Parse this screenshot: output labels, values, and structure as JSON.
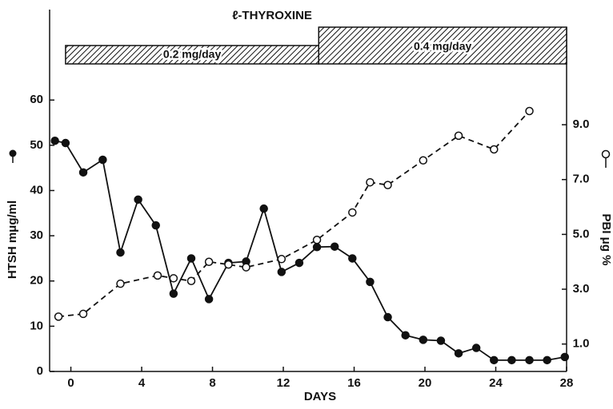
{
  "chart_data": {
    "type": "line",
    "title": "ℓ-THYROXINE",
    "xlabel": "DAYS",
    "ylabel": "HTSH mμg/ml",
    "y2label": "PBI μg %",
    "dose": [
      {
        "label": "0.2 mg/day",
        "start": -0.3,
        "end": 14
      },
      {
        "label": "0.4 mg/day",
        "start": 14,
        "end": 28
      }
    ],
    "xlim": [
      -1.2,
      28
    ],
    "xticks": [
      0,
      4,
      8,
      12,
      16,
      20,
      24,
      28
    ],
    "ylim": [
      0,
      80
    ],
    "yticks": [
      0,
      10,
      20,
      30,
      40,
      50,
      60
    ],
    "y2lim": [
      0,
      13.2
    ],
    "y2ticks": [
      {
        "value": 1,
        "label": "1.0"
      },
      {
        "value": 3,
        "label": "3.0"
      },
      {
        "value": 5,
        "label": "5.0"
      },
      {
        "value": 7,
        "label": "7.0"
      },
      {
        "value": 9,
        "label": "9.0"
      }
    ],
    "series": [
      {
        "color": "#111111",
        "marker": "filled",
        "style": "solid",
        "x": [
          -0.9,
          -0.3,
          0.7,
          1.8,
          2.8,
          3.8,
          4.8,
          5.8,
          6.8,
          7.8,
          8.9,
          9.9,
          10.9,
          11.9,
          12.9,
          13.9,
          14.9,
          15.9,
          16.9,
          17.9,
          18.9,
          19.9,
          20.9,
          21.9,
          22.9,
          23.9,
          24.9,
          25.9,
          26.9,
          27.9
        ],
        "values": [
          51,
          50.5,
          44,
          46.8,
          26.3,
          38,
          32.3,
          17.2,
          25,
          16,
          24,
          24.3,
          36,
          22,
          24,
          27.5,
          27.6,
          25,
          19.8,
          12,
          8,
          7,
          6.8,
          4,
          5.2,
          2.5,
          2.5,
          2.5,
          2.5,
          3.2
        ]
      },
      {
        "color": "#111111",
        "marker": "open",
        "style": "dashed",
        "axis": "y2",
        "x": [
          -0.7,
          0.7,
          2.8,
          4.9,
          5.8,
          6.8,
          7.8,
          8.9,
          9.9,
          11.9,
          13.9,
          15.9,
          16.9,
          17.9,
          19.9,
          21.9,
          23.9,
          25.9
        ],
        "values": [
          2.0,
          2.1,
          3.2,
          3.5,
          3.4,
          3.3,
          4.0,
          3.9,
          3.8,
          4.1,
          4.8,
          5.8,
          6.9,
          6.8,
          7.7,
          8.6,
          8.1,
          9.5
        ]
      }
    ]
  }
}
